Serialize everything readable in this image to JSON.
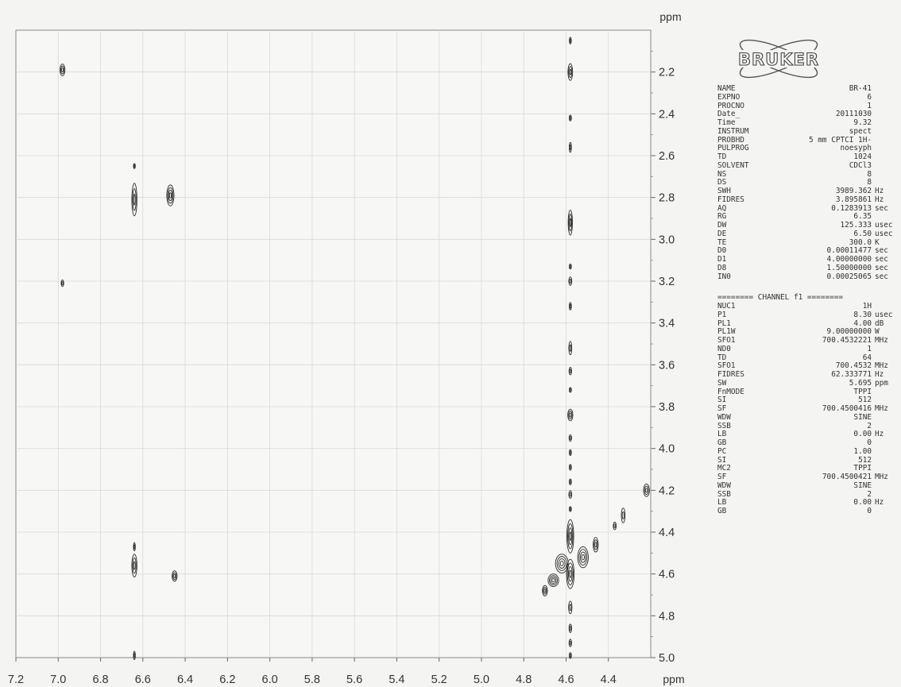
{
  "chart_data": {
    "type": "heatmap",
    "title": "",
    "xlabel": "ppm",
    "ylabel": "ppm",
    "xlim": [
      7.2,
      4.2
    ],
    "ylim": [
      2.0,
      5.0
    ],
    "x_ticks": [
      "7.2",
      "7.0",
      "6.8",
      "6.6",
      "6.4",
      "6.2",
      "6.0",
      "5.8",
      "5.6",
      "5.4",
      "5.2",
      "5.0",
      "4.8",
      "4.6",
      "4.4"
    ],
    "y_ticks": [
      "2.2",
      "2.4",
      "2.6",
      "2.8",
      "3.0",
      "3.2",
      "3.4",
      "3.6",
      "3.8",
      "4.0",
      "4.2",
      "4.4",
      "4.6",
      "4.8",
      "5.0"
    ],
    "grid": true,
    "peaks": [
      {
        "x": 6.98,
        "y": 2.19,
        "dx": 0.012,
        "dy": 0.028
      },
      {
        "x": 6.98,
        "y": 3.21,
        "dx": 0.006,
        "dy": 0.016
      },
      {
        "x": 6.64,
        "y": 2.65,
        "dx": 0.003,
        "dy": 0.012
      },
      {
        "x": 6.64,
        "y": 2.81,
        "dx": 0.012,
        "dy": 0.078
      },
      {
        "x": 6.47,
        "y": 2.79,
        "dx": 0.017,
        "dy": 0.05
      },
      {
        "x": 6.64,
        "y": 4.47,
        "dx": 0.004,
        "dy": 0.02
      },
      {
        "x": 6.64,
        "y": 4.56,
        "dx": 0.012,
        "dy": 0.055
      },
      {
        "x": 6.45,
        "y": 4.61,
        "dx": 0.012,
        "dy": 0.025
      },
      {
        "x": 6.64,
        "y": 4.99,
        "dx": 0.004,
        "dy": 0.02
      },
      {
        "x": 4.58,
        "y": 2.05,
        "dx": 0.004,
        "dy": 0.016
      },
      {
        "x": 4.58,
        "y": 2.2,
        "dx": 0.011,
        "dy": 0.04
      },
      {
        "x": 4.58,
        "y": 2.42,
        "dx": 0.005,
        "dy": 0.014
      },
      {
        "x": 4.58,
        "y": 2.56,
        "dx": 0.005,
        "dy": 0.024
      },
      {
        "x": 4.58,
        "y": 2.92,
        "dx": 0.01,
        "dy": 0.06
      },
      {
        "x": 4.58,
        "y": 3.13,
        "dx": 0.005,
        "dy": 0.012
      },
      {
        "x": 4.58,
        "y": 3.2,
        "dx": 0.007,
        "dy": 0.02
      },
      {
        "x": 4.58,
        "y": 3.32,
        "dx": 0.005,
        "dy": 0.018
      },
      {
        "x": 4.58,
        "y": 3.52,
        "dx": 0.007,
        "dy": 0.032
      },
      {
        "x": 4.58,
        "y": 3.63,
        "dx": 0.006,
        "dy": 0.018
      },
      {
        "x": 4.58,
        "y": 3.72,
        "dx": 0.005,
        "dy": 0.012
      },
      {
        "x": 4.58,
        "y": 3.84,
        "dx": 0.012,
        "dy": 0.028
      },
      {
        "x": 4.58,
        "y": 3.95,
        "dx": 0.006,
        "dy": 0.016
      },
      {
        "x": 4.58,
        "y": 4.02,
        "dx": 0.005,
        "dy": 0.014
      },
      {
        "x": 4.58,
        "y": 4.09,
        "dx": 0.005,
        "dy": 0.014
      },
      {
        "x": 4.58,
        "y": 4.16,
        "dx": 0.005,
        "dy": 0.014
      },
      {
        "x": 4.58,
        "y": 4.22,
        "dx": 0.007,
        "dy": 0.018
      },
      {
        "x": 4.58,
        "y": 4.29,
        "dx": 0.005,
        "dy": 0.012
      },
      {
        "x": 4.58,
        "y": 4.42,
        "dx": 0.016,
        "dy": 0.08
      },
      {
        "x": 4.58,
        "y": 4.6,
        "dx": 0.018,
        "dy": 0.07
      },
      {
        "x": 4.58,
        "y": 4.76,
        "dx": 0.008,
        "dy": 0.03
      },
      {
        "x": 4.58,
        "y": 4.86,
        "dx": 0.006,
        "dy": 0.02
      },
      {
        "x": 4.58,
        "y": 4.93,
        "dx": 0.006,
        "dy": 0.018
      },
      {
        "x": 4.58,
        "y": 4.99,
        "dx": 0.005,
        "dy": 0.014
      },
      {
        "x": 4.62,
        "y": 4.55,
        "dx": 0.03,
        "dy": 0.045
      },
      {
        "x": 4.66,
        "y": 4.63,
        "dx": 0.025,
        "dy": 0.03
      },
      {
        "x": 4.7,
        "y": 4.68,
        "dx": 0.012,
        "dy": 0.025
      },
      {
        "x": 4.52,
        "y": 4.52,
        "dx": 0.025,
        "dy": 0.05
      },
      {
        "x": 4.46,
        "y": 4.46,
        "dx": 0.012,
        "dy": 0.035
      },
      {
        "x": 4.37,
        "y": 4.37,
        "dx": 0.007,
        "dy": 0.018
      },
      {
        "x": 4.33,
        "y": 4.32,
        "dx": 0.009,
        "dy": 0.035
      },
      {
        "x": 4.22,
        "y": 4.2,
        "dx": 0.014,
        "dy": 0.03
      }
    ]
  },
  "logo_text": "BRUKER",
  "channel_header": "======== CHANNEL f1 ========",
  "params_a": [
    {
      "name": "NAME",
      "value": "BR-41",
      "unit": ""
    },
    {
      "name": "EXPNO",
      "value": "6",
      "unit": ""
    },
    {
      "name": "PROCNO",
      "value": "1",
      "unit": ""
    },
    {
      "name": "Date_",
      "value": "20111030",
      "unit": ""
    },
    {
      "name": "Time",
      "value": "9.32",
      "unit": ""
    },
    {
      "name": "INSTRUM",
      "value": "spect",
      "unit": ""
    },
    {
      "name": "PROBHD",
      "value": "5 mm CPTCI 1H-",
      "unit": ""
    },
    {
      "name": "PULPROG",
      "value": "noesyph",
      "unit": ""
    },
    {
      "name": "TD",
      "value": "1024",
      "unit": ""
    },
    {
      "name": "SOLVENT",
      "value": "CDCl3",
      "unit": ""
    },
    {
      "name": "NS",
      "value": "8",
      "unit": ""
    },
    {
      "name": "DS",
      "value": "8",
      "unit": ""
    },
    {
      "name": "SWH",
      "value": "3989.362",
      "unit": "Hz"
    },
    {
      "name": "FIDRES",
      "value": "3.895861",
      "unit": "Hz"
    },
    {
      "name": "AQ",
      "value": "0.1283913",
      "unit": "sec"
    },
    {
      "name": "RG",
      "value": "6.35",
      "unit": ""
    },
    {
      "name": "DW",
      "value": "125.333",
      "unit": "usec"
    },
    {
      "name": "DE",
      "value": "6.50",
      "unit": "usec"
    },
    {
      "name": "TE",
      "value": "300.0",
      "unit": "K"
    },
    {
      "name": "D0",
      "value": "0.00011477",
      "unit": "sec"
    },
    {
      "name": "D1",
      "value": "4.00000000",
      "unit": "sec"
    },
    {
      "name": "D8",
      "value": "1.50000000",
      "unit": "sec"
    },
    {
      "name": "IN0",
      "value": "0.00025065",
      "unit": "sec"
    }
  ],
  "params_b": [
    {
      "name": "NUC1",
      "value": "1H",
      "unit": ""
    },
    {
      "name": "P1",
      "value": "8.30",
      "unit": "usec"
    },
    {
      "name": "PL1",
      "value": "4.00",
      "unit": "dB"
    },
    {
      "name": "PL1W",
      "value": "9.00000000",
      "unit": "W"
    },
    {
      "name": "SFO1",
      "value": "700.4532221",
      "unit": "MHz"
    },
    {
      "name": "ND0",
      "value": "1",
      "unit": ""
    },
    {
      "name": "TD",
      "value": "64",
      "unit": ""
    },
    {
      "name": "SFO1",
      "value": "700.4532",
      "unit": "MHz"
    },
    {
      "name": "FIDRES",
      "value": "62.333771",
      "unit": "Hz"
    },
    {
      "name": "SW",
      "value": "5.695",
      "unit": "ppm"
    },
    {
      "name": "FnMODE",
      "value": "TPPI",
      "unit": ""
    },
    {
      "name": "SI",
      "value": "512",
      "unit": ""
    },
    {
      "name": "SF",
      "value": "700.4500416",
      "unit": "MHz"
    },
    {
      "name": "WDW",
      "value": "SINE",
      "unit": ""
    },
    {
      "name": "SSB",
      "value": "2",
      "unit": ""
    },
    {
      "name": "LB",
      "value": "0.00",
      "unit": "Hz"
    },
    {
      "name": "GB",
      "value": "0",
      "unit": ""
    },
    {
      "name": "PC",
      "value": "1.00",
      "unit": ""
    },
    {
      "name": "SI",
      "value": "512",
      "unit": ""
    },
    {
      "name": "MC2",
      "value": "TPPI",
      "unit": ""
    },
    {
      "name": "SF",
      "value": "700.4500421",
      "unit": "MHz"
    },
    {
      "name": "WDW",
      "value": "SINE",
      "unit": ""
    },
    {
      "name": "SSB",
      "value": "2",
      "unit": ""
    },
    {
      "name": "LB",
      "value": "0.00",
      "unit": "Hz"
    },
    {
      "name": "GB",
      "value": "0",
      "unit": ""
    }
  ]
}
